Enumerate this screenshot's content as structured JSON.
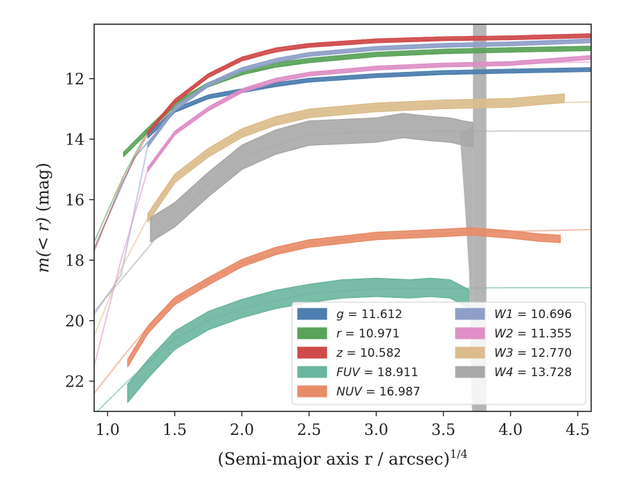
{
  "chart_data": {
    "type": "line",
    "xlabel": "(Semi-major axis r / arcsec)",
    "xlabel_sup": "1/4",
    "ylabel_prefix": "m(< r)",
    "ylabel_suffix": " (mag)",
    "xlim": [
      0.9,
      4.6
    ],
    "ylim": [
      23.0,
      10.2
    ],
    "y_inverted": true,
    "xticks": [
      1.0,
      1.5,
      2.0,
      2.5,
      3.0,
      3.5,
      4.0,
      4.5
    ],
    "xtick_labels": [
      "1.0",
      "1.5",
      "2.0",
      "2.5",
      "3.0",
      "3.5",
      "4.0",
      "4.5"
    ],
    "yticks": [
      12,
      14,
      16,
      18,
      20,
      22
    ],
    "ytick_labels": [
      "12",
      "14",
      "16",
      "18",
      "20",
      "22"
    ],
    "grid": false,
    "legend_placement": "bottom-right",
    "legend_columns": 2,
    "series": [
      {
        "name": "g = 11.612",
        "label_var": "g",
        "label_val": " = 11.612",
        "color": "#4c7eaf",
        "data_start": 1.3,
        "data_end": 4.6,
        "width_mag": 0.06,
        "points": [
          [
            1.3,
            13.9
          ],
          [
            1.5,
            13.05
          ],
          [
            1.75,
            12.6
          ],
          [
            2.0,
            12.4
          ],
          [
            2.25,
            12.2
          ],
          [
            2.5,
            12.05
          ],
          [
            3.0,
            11.9
          ],
          [
            3.5,
            11.8
          ],
          [
            4.0,
            11.75
          ],
          [
            4.6,
            11.7
          ]
        ],
        "model": [
          [
            0.9,
            17.6
          ],
          [
            1.2,
            14.6
          ],
          [
            1.5,
            13.1
          ],
          [
            1.75,
            12.6
          ],
          [
            2.0,
            12.4
          ],
          [
            2.5,
            12.05
          ],
          [
            3.0,
            11.9
          ],
          [
            4.0,
            11.75
          ],
          [
            4.6,
            11.7
          ]
        ]
      },
      {
        "name": "r = 10.971",
        "label_var": "r",
        "label_val": " = 10.971",
        "color": "#5aa35a",
        "data_start": 1.12,
        "data_end": 4.6,
        "width_mag": 0.07,
        "points": [
          [
            1.12,
            14.5
          ],
          [
            1.3,
            13.7
          ],
          [
            1.5,
            12.85
          ],
          [
            1.75,
            12.2
          ],
          [
            2.0,
            11.8
          ],
          [
            2.25,
            11.55
          ],
          [
            2.5,
            11.4
          ],
          [
            3.0,
            11.2
          ],
          [
            3.5,
            11.1
          ],
          [
            4.0,
            11.05
          ],
          [
            4.6,
            11.0
          ]
        ],
        "model": [
          [
            0.9,
            17.4
          ],
          [
            1.12,
            15.2
          ],
          [
            1.3,
            13.7
          ],
          [
            1.5,
            12.85
          ],
          [
            1.75,
            12.2
          ],
          [
            2.0,
            11.8
          ],
          [
            2.5,
            11.4
          ],
          [
            3.0,
            11.2
          ],
          [
            4.0,
            11.05
          ],
          [
            4.6,
            11.0
          ]
        ]
      },
      {
        "name": "z = 10.582",
        "label_var": "z",
        "label_val": " = 10.582",
        "color": "#d04a4a",
        "data_start": 1.3,
        "data_end": 4.6,
        "width_mag": 0.06,
        "points": [
          [
            1.3,
            13.8
          ],
          [
            1.5,
            12.75
          ],
          [
            1.75,
            11.9
          ],
          [
            2.0,
            11.35
          ],
          [
            2.25,
            11.05
          ],
          [
            2.5,
            10.9
          ],
          [
            3.0,
            10.75
          ],
          [
            3.5,
            10.68
          ],
          [
            4.0,
            10.65
          ],
          [
            4.6,
            10.58
          ]
        ],
        "model": [
          [
            0.9,
            17.7
          ],
          [
            1.1,
            15.5
          ],
          [
            1.3,
            13.8
          ],
          [
            1.5,
            12.75
          ],
          [
            1.75,
            11.9
          ],
          [
            2.0,
            11.35
          ],
          [
            2.5,
            10.9
          ],
          [
            3.0,
            10.75
          ],
          [
            4.0,
            10.65
          ],
          [
            4.6,
            10.58
          ]
        ]
      },
      {
        "name": "FUV = 18.911",
        "label_var": "FUV",
        "label_val": " = 18.911",
        "color": "#6ab59f",
        "data_start": 1.15,
        "data_end": 3.7,
        "width_mag": 0.3,
        "points": [
          [
            1.15,
            22.4
          ],
          [
            1.3,
            21.6
          ],
          [
            1.5,
            20.65
          ],
          [
            1.75,
            20.0
          ],
          [
            2.0,
            19.6
          ],
          [
            2.25,
            19.3
          ],
          [
            2.5,
            19.1
          ],
          [
            2.75,
            18.95
          ],
          [
            3.0,
            18.9
          ],
          [
            3.25,
            18.95
          ],
          [
            3.4,
            18.9
          ],
          [
            3.55,
            18.95
          ],
          [
            3.7,
            19.3
          ]
        ],
        "model": [
          [
            0.9,
            23.1
          ],
          [
            1.15,
            22.0
          ],
          [
            1.3,
            21.4
          ],
          [
            1.5,
            20.6
          ],
          [
            1.75,
            20.0
          ],
          [
            2.0,
            19.6
          ],
          [
            2.5,
            19.1
          ],
          [
            3.0,
            18.95
          ],
          [
            4.0,
            18.91
          ],
          [
            4.6,
            18.91
          ]
        ]
      },
      {
        "name": "NUV = 16.987",
        "label_var": "NUV",
        "label_val": " = 16.987",
        "color": "#e88b68",
        "data_start": 1.15,
        "data_end": 4.38,
        "width_mag": 0.12,
        "points": [
          [
            1.15,
            21.4
          ],
          [
            1.3,
            20.3
          ],
          [
            1.5,
            19.35
          ],
          [
            1.75,
            18.7
          ],
          [
            2.0,
            18.1
          ],
          [
            2.25,
            17.7
          ],
          [
            2.5,
            17.45
          ],
          [
            3.0,
            17.2
          ],
          [
            3.5,
            17.1
          ],
          [
            3.7,
            17.05
          ],
          [
            4.0,
            17.15
          ],
          [
            4.2,
            17.25
          ],
          [
            4.38,
            17.3
          ]
        ],
        "model": [
          [
            0.9,
            22.4
          ],
          [
            1.15,
            21.0
          ],
          [
            1.3,
            20.2
          ],
          [
            1.5,
            19.35
          ],
          [
            1.75,
            18.7
          ],
          [
            2.0,
            18.1
          ],
          [
            2.5,
            17.45
          ],
          [
            3.0,
            17.2
          ],
          [
            4.0,
            17.05
          ],
          [
            4.6,
            16.99
          ]
        ]
      },
      {
        "name": "W1 = 10.696",
        "label_var": "W1",
        "label_val": " = 10.696",
        "color": "#8fa0c8",
        "data_start": 1.3,
        "data_end": 4.6,
        "width_mag": 0.06,
        "points": [
          [
            1.3,
            14.2
          ],
          [
            1.5,
            13.0
          ],
          [
            1.75,
            12.2
          ],
          [
            2.0,
            11.7
          ],
          [
            2.25,
            11.4
          ],
          [
            2.5,
            11.2
          ],
          [
            3.0,
            11.0
          ],
          [
            3.5,
            10.9
          ],
          [
            4.0,
            10.85
          ],
          [
            4.6,
            10.75
          ]
        ],
        "model": [
          [
            0.9,
            19.8
          ],
          [
            1.1,
            18.5
          ],
          [
            1.3,
            14.2
          ],
          [
            1.5,
            13.0
          ],
          [
            1.75,
            12.2
          ],
          [
            2.0,
            11.7
          ],
          [
            2.5,
            11.2
          ],
          [
            3.0,
            11.0
          ],
          [
            4.0,
            10.85
          ],
          [
            4.6,
            10.7
          ]
        ]
      },
      {
        "name": "W2 = 11.355",
        "label_var": "W2",
        "label_val": " = 11.355",
        "color": "#de8fc6",
        "data_start": 1.3,
        "data_end": 4.6,
        "width_mag": 0.06,
        "points": [
          [
            1.3,
            15.0
          ],
          [
            1.5,
            13.8
          ],
          [
            1.75,
            13.0
          ],
          [
            2.0,
            12.4
          ],
          [
            2.25,
            12.05
          ],
          [
            2.5,
            11.85
          ],
          [
            3.0,
            11.65
          ],
          [
            3.5,
            11.55
          ],
          [
            4.0,
            11.5
          ],
          [
            4.6,
            11.3
          ]
        ],
        "model": [
          [
            0.9,
            21.5
          ],
          [
            1.1,
            18.0
          ],
          [
            1.3,
            15.0
          ],
          [
            1.5,
            13.8
          ],
          [
            1.75,
            13.0
          ],
          [
            2.0,
            12.4
          ],
          [
            2.5,
            11.85
          ],
          [
            3.0,
            11.65
          ],
          [
            4.0,
            11.5
          ],
          [
            4.6,
            11.45
          ]
        ]
      },
      {
        "name": "W3 = 12.770",
        "label_var": "W3",
        "label_val": " = 12.770",
        "color": "#dcbc8c",
        "data_start": 1.3,
        "data_end": 4.4,
        "width_mag": 0.14,
        "points": [
          [
            1.3,
            16.6
          ],
          [
            1.5,
            15.3
          ],
          [
            1.75,
            14.45
          ],
          [
            2.0,
            13.8
          ],
          [
            2.25,
            13.4
          ],
          [
            2.5,
            13.15
          ],
          [
            3.0,
            12.95
          ],
          [
            3.5,
            12.85
          ],
          [
            4.0,
            12.8
          ],
          [
            4.2,
            12.72
          ],
          [
            4.4,
            12.65
          ]
        ],
        "model": [
          [
            0.9,
            20.5
          ],
          [
            1.1,
            18.3
          ],
          [
            1.3,
            16.6
          ],
          [
            1.5,
            15.3
          ],
          [
            1.75,
            14.45
          ],
          [
            2.0,
            13.8
          ],
          [
            2.5,
            13.15
          ],
          [
            3.0,
            12.95
          ],
          [
            4.0,
            12.82
          ],
          [
            4.6,
            12.77
          ]
        ]
      },
      {
        "name": "W4 = 13.728",
        "label_var": "W4",
        "label_val": " = 13.728",
        "color": "#a8a8a8",
        "data_start": 1.32,
        "data_end": 3.72,
        "width_mag": 0.4,
        "points": [
          [
            1.32,
            17.0
          ],
          [
            1.5,
            16.5
          ],
          [
            1.75,
            15.5
          ],
          [
            2.0,
            14.6
          ],
          [
            2.25,
            14.1
          ],
          [
            2.5,
            13.8
          ],
          [
            2.75,
            13.75
          ],
          [
            3.0,
            13.7
          ],
          [
            3.2,
            13.55
          ],
          [
            3.4,
            13.65
          ],
          [
            3.55,
            13.7
          ],
          [
            3.65,
            13.8
          ],
          [
            3.72,
            13.85
          ]
        ],
        "model": [
          [
            0.9,
            19.7
          ],
          [
            1.3,
            17.6
          ],
          [
            1.5,
            16.5
          ],
          [
            1.75,
            15.5
          ],
          [
            2.0,
            14.6
          ],
          [
            2.5,
            13.85
          ],
          [
            3.0,
            13.75
          ],
          [
            4.0,
            13.73
          ],
          [
            4.6,
            13.73
          ]
        ]
      }
    ],
    "w4_noise": {
      "band_x": [
        3.72,
        3.82
      ],
      "drop_x": [
        3.62,
        3.72
      ],
      "drop_y_low": 23.0
    }
  }
}
